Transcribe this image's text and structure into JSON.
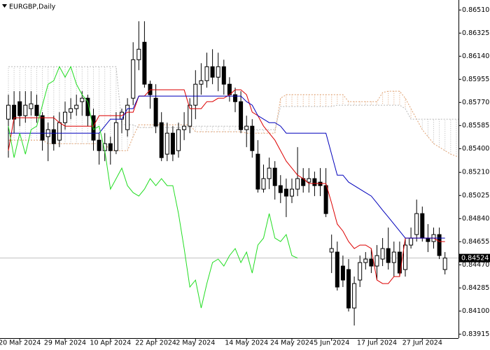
{
  "chart_data": {
    "type": "candlestick",
    "title": "EURGBP,Daily",
    "categories": [
      null,
      null,
      "20 Mar 2024",
      null,
      null,
      null,
      null,
      null,
      null,
      null,
      "29 Mar 2024",
      null,
      null,
      null,
      null,
      null,
      null,
      null,
      "10 Apr 2024",
      null,
      null,
      null,
      null,
      null,
      null,
      null,
      "22 Apr 2024",
      null,
      null,
      null,
      null,
      null,
      null,
      "2 May 2024",
      null,
      null,
      null,
      null,
      null,
      null,
      null,
      null,
      "14 May 2024",
      null,
      null,
      null,
      null,
      null,
      null,
      null,
      "24 May 2024",
      null,
      null,
      null,
      null,
      null,
      null,
      "5 Jun 2024",
      null,
      null,
      null,
      null,
      null,
      null,
      null,
      "17 Jun 2024",
      null,
      null,
      null,
      null,
      null,
      null,
      null,
      "27 Jun 2024",
      null,
      null,
      null,
      null,
      null,
      null,
      null
    ],
    "open": [
      0.85636,
      0.85748,
      0.85776,
      0.85664,
      0.8572,
      0.85748,
      0.85664,
      0.85496,
      0.85552,
      0.85468,
      0.85608,
      0.85692,
      0.8572,
      0.85776,
      0.85804,
      0.85664,
      0.85468,
      0.85384,
      0.8544,
      0.85384,
      0.85636,
      0.85552,
      0.85804,
      0.86112,
      0.86252,
      0.85916,
      0.85804,
      0.85608,
      0.85356,
      0.85524,
      0.85384,
      0.85552,
      0.8558,
      0.85748,
      0.85916,
      0.85944,
      0.86056,
      0.85972,
      0.86056,
      0.85916,
      0.85832,
      0.85776,
      0.85552,
      0.8558,
      0.85356,
      0.85076,
      0.8516,
      0.85244,
      0.85104,
      0.85076,
      0.8502,
      0.85076,
      0.8516,
      0.85132,
      0.8516,
      0.85132,
      0.85104,
      0.84572,
      0.84572,
      0.8446,
      0.84432,
      0.84124,
      0.84348,
      0.84488,
      0.84516,
      0.8446,
      0.84516,
      0.846,
      0.84488,
      0.84572,
      0.84432,
      0.84628,
      0.84712,
      0.8488,
      0.84684,
      0.84656,
      0.84712,
      0.84432,
      null,
      null,
      null
    ],
    "high": [
      0.85832,
      0.8586,
      0.8586,
      0.8586,
      0.8586,
      0.85832,
      0.85692,
      0.85608,
      0.85664,
      0.85692,
      0.85776,
      0.85804,
      0.85832,
      0.8586,
      0.85832,
      0.8572,
      0.85524,
      0.85524,
      0.85496,
      0.85692,
      0.8572,
      0.85804,
      0.86252,
      0.8642,
      0.8642,
      0.85944,
      0.85916,
      0.85692,
      0.85608,
      0.8558,
      0.85608,
      0.85692,
      0.85804,
      0.86028,
      0.86084,
      0.86168,
      0.86196,
      0.86168,
      0.86112,
      0.85972,
      0.85888,
      0.8586,
      0.85664,
      0.85636,
      0.85468,
      0.85272,
      0.85328,
      0.853,
      0.85188,
      0.8516,
      0.8516,
      0.85412,
      0.85244,
      0.85244,
      0.85216,
      0.85244,
      0.85244,
      0.84712,
      0.84656,
      0.84544,
      0.84516,
      0.84376,
      0.84544,
      0.84572,
      0.846,
      0.84628,
      0.84684,
      0.84768,
      0.84656,
      0.84656,
      0.84684,
      0.84768,
      0.84992,
      0.84936,
      0.84796,
      0.84768,
      0.84768,
      0.84572,
      null,
      null,
      null
    ],
    "low": [
      0.85328,
      0.85524,
      0.8558,
      0.85608,
      0.85664,
      0.85608,
      0.85384,
      0.853,
      0.85384,
      0.85412,
      0.85552,
      0.85636,
      0.85664,
      0.85664,
      0.8558,
      0.85384,
      0.85272,
      0.853,
      0.85272,
      0.85356,
      0.85524,
      0.85496,
      0.85748,
      0.86028,
      0.85888,
      0.8572,
      0.85524,
      0.853,
      0.853,
      0.853,
      0.85328,
      0.85468,
      0.85524,
      0.85636,
      0.85832,
      0.85888,
      0.85916,
      0.8586,
      0.85832,
      0.85776,
      0.85692,
      0.85524,
      0.85412,
      0.85328,
      0.85048,
      0.85048,
      0.85076,
      0.84992,
      0.84964,
      0.84852,
      0.84964,
      0.8502,
      0.85048,
      0.85048,
      0.8502,
      0.8502,
      0.84852,
      0.84404,
      0.84264,
      0.84292,
      0.84096,
      0.83984,
      0.84292,
      0.84432,
      0.84404,
      0.84348,
      0.8446,
      0.84432,
      0.84376,
      0.84376,
      0.84376,
      0.846,
      0.84656,
      0.84656,
      0.84572,
      0.846,
      0.84516,
      0.84393,
      null,
      null,
      null
    ],
    "close": [
      0.85748,
      0.85636,
      0.85664,
      0.85748,
      0.85759,
      0.85664,
      0.85468,
      0.85552,
      0.8544,
      0.85608,
      0.85692,
      0.8572,
      0.85748,
      0.85804,
      0.85664,
      0.85468,
      0.85384,
      0.8544,
      0.85384,
      0.85608,
      0.85692,
      0.85748,
      0.86112,
      0.86196,
      0.85916,
      0.85832,
      0.8558,
      0.85328,
      0.85524,
      0.85356,
      0.85552,
      0.8558,
      0.85748,
      0.85916,
      0.85944,
      0.86056,
      0.85972,
      0.86056,
      0.85916,
      0.85832,
      0.85776,
      0.85552,
      0.8558,
      0.85384,
      0.85076,
      0.8516,
      0.85244,
      0.85104,
      0.85048,
      0.8502,
      0.85076,
      0.8516,
      0.85104,
      0.8516,
      0.85104,
      0.85104,
      0.8488,
      0.846,
      0.84292,
      0.84348,
      0.84124,
      0.8432,
      0.84488,
      0.84516,
      0.8446,
      0.84544,
      0.846,
      0.84488,
      0.84572,
      0.84404,
      0.84628,
      0.84684,
      0.8488,
      0.84684,
      0.84656,
      0.84712,
      0.84544,
      0.84524,
      null,
      null,
      null
    ],
    "up_color": "#ffffff",
    "down_color": "#000000",
    "lines": [
      {
        "color": "#dd0000",
        "values": [
          0.85384,
          0.85647,
          0.85647,
          0.85647,
          0.85647,
          0.85647,
          0.85647,
          0.85647,
          0.85647,
          0.85608,
          0.8558,
          0.8558,
          0.8558,
          0.8558,
          0.8558,
          0.8558,
          0.85664,
          0.85664,
          0.85664,
          0.85664,
          0.85664,
          0.85692,
          0.85692,
          0.85821,
          0.85821,
          0.85871,
          0.85871,
          0.85871,
          0.85871,
          0.85871,
          0.85871,
          0.85871,
          0.8572,
          0.8572,
          0.8572,
          0.85776,
          0.85776,
          0.85804,
          0.85804,
          0.85832,
          0.85871,
          0.85871,
          0.85832,
          0.85692,
          0.85664,
          0.8558,
          0.85524,
          0.85468,
          0.85384,
          0.853,
          0.85244,
          0.85188,
          0.8516,
          0.85121,
          0.85121,
          0.85121,
          0.85121,
          0.84964,
          0.84796,
          0.8474,
          0.84656,
          0.846,
          0.84628,
          0.84628,
          0.846,
          0.84348,
          0.8432,
          0.8432,
          0.84376,
          0.84376,
          0.84684,
          0.84684,
          0.84684,
          0.84684,
          0.84684,
          0.84684,
          0.84656,
          0.84656,
          null,
          null,
          null
        ]
      },
      {
        "color": "#0000bb",
        "values": [
          0.85524,
          0.85524,
          0.85524,
          0.85524,
          0.85524,
          0.85524,
          0.85524,
          0.85524,
          0.85524,
          0.85524,
          0.85524,
          0.85524,
          0.85524,
          0.85524,
          0.85524,
          0.85524,
          0.85524,
          0.8558,
          0.85636,
          0.85636,
          0.85636,
          0.8572,
          0.8572,
          0.85821,
          0.85821,
          0.85821,
          0.85821,
          0.85821,
          0.85821,
          0.85821,
          0.85821,
          0.85821,
          0.85821,
          0.85821,
          0.85821,
          0.85821,
          0.85821,
          0.85821,
          0.85821,
          0.85821,
          0.85821,
          0.85821,
          0.85776,
          0.85748,
          0.85664,
          0.85636,
          0.85608,
          0.85608,
          0.8558,
          0.85524,
          0.85524,
          0.85524,
          0.85524,
          0.85524,
          0.85524,
          0.85524,
          0.85524,
          0.85356,
          0.85188,
          0.85188,
          0.85132,
          0.85104,
          0.85076,
          0.85048,
          0.8502,
          0.84964,
          0.84907,
          0.84852,
          0.84796,
          0.8474,
          0.84684,
          0.84684,
          0.84684,
          0.84684,
          0.84684,
          0.84684,
          0.84684,
          0.84684,
          null,
          null,
          null
        ]
      },
      {
        "color": "#22dd22",
        "values": [
          0.8558,
          0.85328,
          0.85524,
          0.85356,
          0.85552,
          0.8558,
          0.85748,
          0.85916,
          0.85944,
          0.86056,
          0.85972,
          0.86056,
          0.85916,
          0.85832,
          0.85776,
          0.85552,
          0.8558,
          0.85384,
          0.85076,
          0.8516,
          0.85244,
          0.85104,
          0.85048,
          0.8502,
          0.85076,
          0.8516,
          0.85104,
          0.8516,
          0.85104,
          0.85104,
          0.8488,
          0.846,
          0.84292,
          0.84348,
          0.84124,
          0.8432,
          0.84488,
          0.84516,
          0.8446,
          0.84544,
          0.846,
          0.84488,
          0.84572,
          0.84404,
          0.84628,
          0.84684,
          0.8488,
          0.84684,
          0.84656,
          0.84712,
          0.84544,
          0.84524,
          null,
          null,
          null,
          null,
          null,
          null,
          null,
          null,
          null,
          null,
          null,
          null,
          null,
          null,
          null,
          null,
          null,
          null,
          null,
          null,
          null,
          null,
          null,
          null,
          null,
          null,
          null
        ]
      }
    ],
    "cloud": {
      "a_color": "#e0a070",
      "b_color": "#b8b8b8",
      "a": [
        0.85468,
        0.85468,
        0.85468,
        0.85468,
        0.85468,
        0.85468,
        0.85468,
        0.8544,
        0.8544,
        0.8544,
        0.8544,
        0.8544,
        0.8544,
        0.8544,
        0.8544,
        0.8544,
        0.8544,
        0.8544,
        0.85384,
        0.85384,
        0.85384,
        0.85384,
        0.85496,
        0.85591,
        0.85591,
        0.85591,
        0.85591,
        0.85591,
        0.85591,
        0.85591,
        0.85591,
        0.85591,
        0.85591,
        0.85535,
        0.85535,
        0.85535,
        0.85535,
        0.85535,
        0.85535,
        0.85535,
        0.85535,
        0.85535,
        0.85524,
        0.85524,
        0.85524,
        0.85524,
        0.85524,
        0.85524,
        0.85804,
        0.85832,
        0.85832,
        0.85832,
        0.85832,
        0.85832,
        0.85832,
        0.85832,
        0.85832,
        0.85832,
        0.85832,
        0.85832,
        0.85776,
        0.85776,
        0.85776,
        0.85776,
        0.85776,
        0.85776,
        0.85849,
        0.8586,
        0.8586,
        0.8586,
        0.85804,
        0.8572,
        0.85636,
        0.85552,
        0.85496,
        0.8544,
        0.85412,
        0.85384,
        0.85356,
        0.85339,
        0.85328
      ],
      "b": [
        0.86056,
        0.86056,
        0.86056,
        0.86056,
        0.86056,
        0.86056,
        0.86056,
        0.86056,
        0.86056,
        0.86056,
        0.86056,
        0.86056,
        0.86056,
        0.86056,
        0.86056,
        0.86056,
        0.86056,
        0.86056,
        0.86056,
        0.86056,
        0.85591,
        0.85591,
        0.85591,
        0.85569,
        0.85569,
        0.85569,
        0.85569,
        0.85569,
        0.85569,
        0.85569,
        0.85569,
        0.85569,
        0.85569,
        0.8558,
        0.8558,
        0.8558,
        0.8558,
        0.8558,
        0.8558,
        0.8558,
        0.8558,
        0.8558,
        0.85552,
        0.85552,
        0.85552,
        0.85552,
        0.85552,
        0.85552,
        0.85737,
        0.85737,
        0.85737,
        0.85737,
        0.85737,
        0.85737,
        0.85737,
        0.85737,
        0.85737,
        0.85737,
        0.85748,
        0.85748,
        0.85748,
        0.85748,
        0.85748,
        0.85748,
        0.85748,
        0.85748,
        0.85748,
        0.85748,
        0.85748,
        0.85748,
        0.8572,
        0.85636,
        0.85636,
        0.85636,
        0.85636,
        0.85636,
        0.85636,
        0.85636,
        0.85636,
        0.85636,
        0.85636
      ]
    },
    "current_price": 0.84524,
    "ylim": [
      0.839,
      0.8659
    ],
    "yticks": [
      {
        "value": 0.8651,
        "label": "0.86510"
      },
      0.86325,
      {
        "value": 0.8614,
        "label": "0.86140"
      },
      0.85955,
      {
        "value": 0.8577,
        "label": "0.85770"
      },
      0.85585,
      {
        "value": 0.854,
        "label": "0.85400"
      },
      {
        "value": 0.8521,
        "label": "0.85210"
      },
      0.85025,
      {
        "value": 0.8484,
        "label": "0.84840"
      },
      0.84655,
      {
        "value": 0.8447,
        "label": "0.84470"
      },
      0.84285,
      {
        "value": 0.841,
        "label": "0.84100"
      },
      0.83915
    ]
  }
}
